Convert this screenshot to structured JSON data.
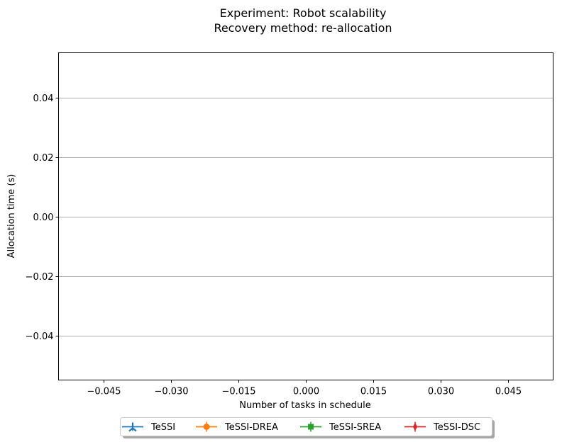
{
  "chart_data": {
    "type": "line",
    "title_line1": "Experiment: Robot scalability",
    "title_line2": "Recovery method: re-allocation",
    "xlabel": "Number of tasks in schedule",
    "ylabel": "Allocation time (s)",
    "xlim": [
      -0.055,
      0.055
    ],
    "ylim": [
      -0.055,
      0.055
    ],
    "x_ticks": [
      -0.045,
      -0.03,
      -0.015,
      0.0,
      0.015,
      0.03,
      0.045
    ],
    "x_tick_labels": [
      "−0.045",
      "−0.030",
      "−0.015",
      "0.000",
      "0.015",
      "0.030",
      "0.045"
    ],
    "y_ticks": [
      0.04,
      0.02,
      0.0,
      -0.02,
      -0.04
    ],
    "y_tick_labels": [
      "0.04",
      "0.02",
      "0.00",
      "−0.02",
      "−0.04"
    ],
    "grid": "horizontal",
    "legend_placement": "below plot, centered",
    "series": [
      {
        "name": "TeSSI",
        "color": "#1f77b4",
        "marker": "tri_up",
        "x": [],
        "y": []
      },
      {
        "name": "TeSSI-DREA",
        "color": "#ff7f0e",
        "marker": "circle",
        "x": [],
        "y": []
      },
      {
        "name": "TeSSI-SREA",
        "color": "#2ca02c",
        "marker": "square",
        "x": [],
        "y": []
      },
      {
        "name": "TeSSI-DSC",
        "color": "#d62728",
        "marker": "thin_diamond",
        "x": [],
        "y": []
      }
    ]
  }
}
